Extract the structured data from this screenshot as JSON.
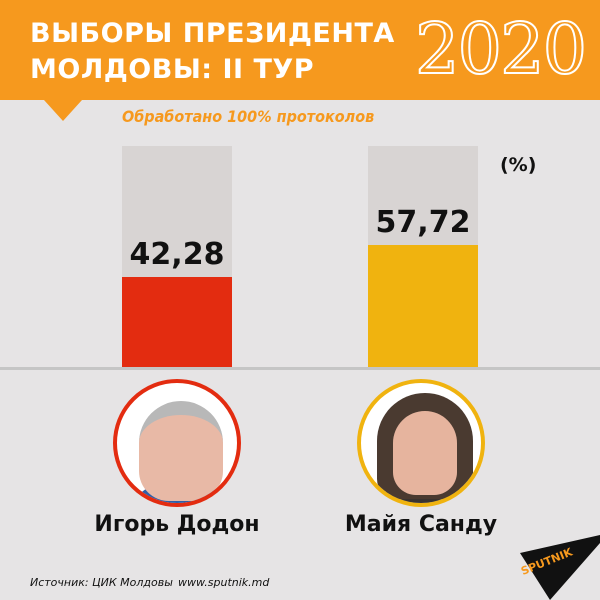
{
  "header": {
    "title_line1": "ВЫБОРЫ ПРЕЗИДЕНТА",
    "title_line2": "МОЛДОВЫ: II ТУР",
    "year": "2020",
    "subtitle": "Обработано 100% протоколов"
  },
  "unit_label": "(%)",
  "colors": {
    "header": "#f6991e",
    "dodon": "#e32c10",
    "sandu": "#f0b30f",
    "track": "#d8d4d3",
    "background": "#e6e4e5"
  },
  "candidates": [
    {
      "name": "Игорь Додон",
      "value": 42.28,
      "label": "42,28",
      "color": "#e32c10"
    },
    {
      "name": "Майя Санду",
      "value": 57.72,
      "label": "57,72",
      "color": "#f0b30f"
    }
  ],
  "footer": {
    "source": "Источник: ЦИК Молдовы",
    "url": "www.sputnik.md",
    "logo": "SPUTNIK"
  },
  "chart_data": {
    "type": "bar",
    "title": "Выборы президента Молдовы: II тур 2020",
    "subtitle": "Обработано 100% протоколов",
    "categories": [
      "Игорь Додон",
      "Майя Санду"
    ],
    "values": [
      42.28,
      57.72
    ],
    "value_labels": [
      "42,28",
      "57,72"
    ],
    "colors": [
      "#e32c10",
      "#f0b30f"
    ],
    "xlabel": "",
    "ylabel": "(%)",
    "ylim": [
      0,
      100
    ],
    "grid": false,
    "legend": "none",
    "source": "Источник: ЦИК Молдовы"
  }
}
